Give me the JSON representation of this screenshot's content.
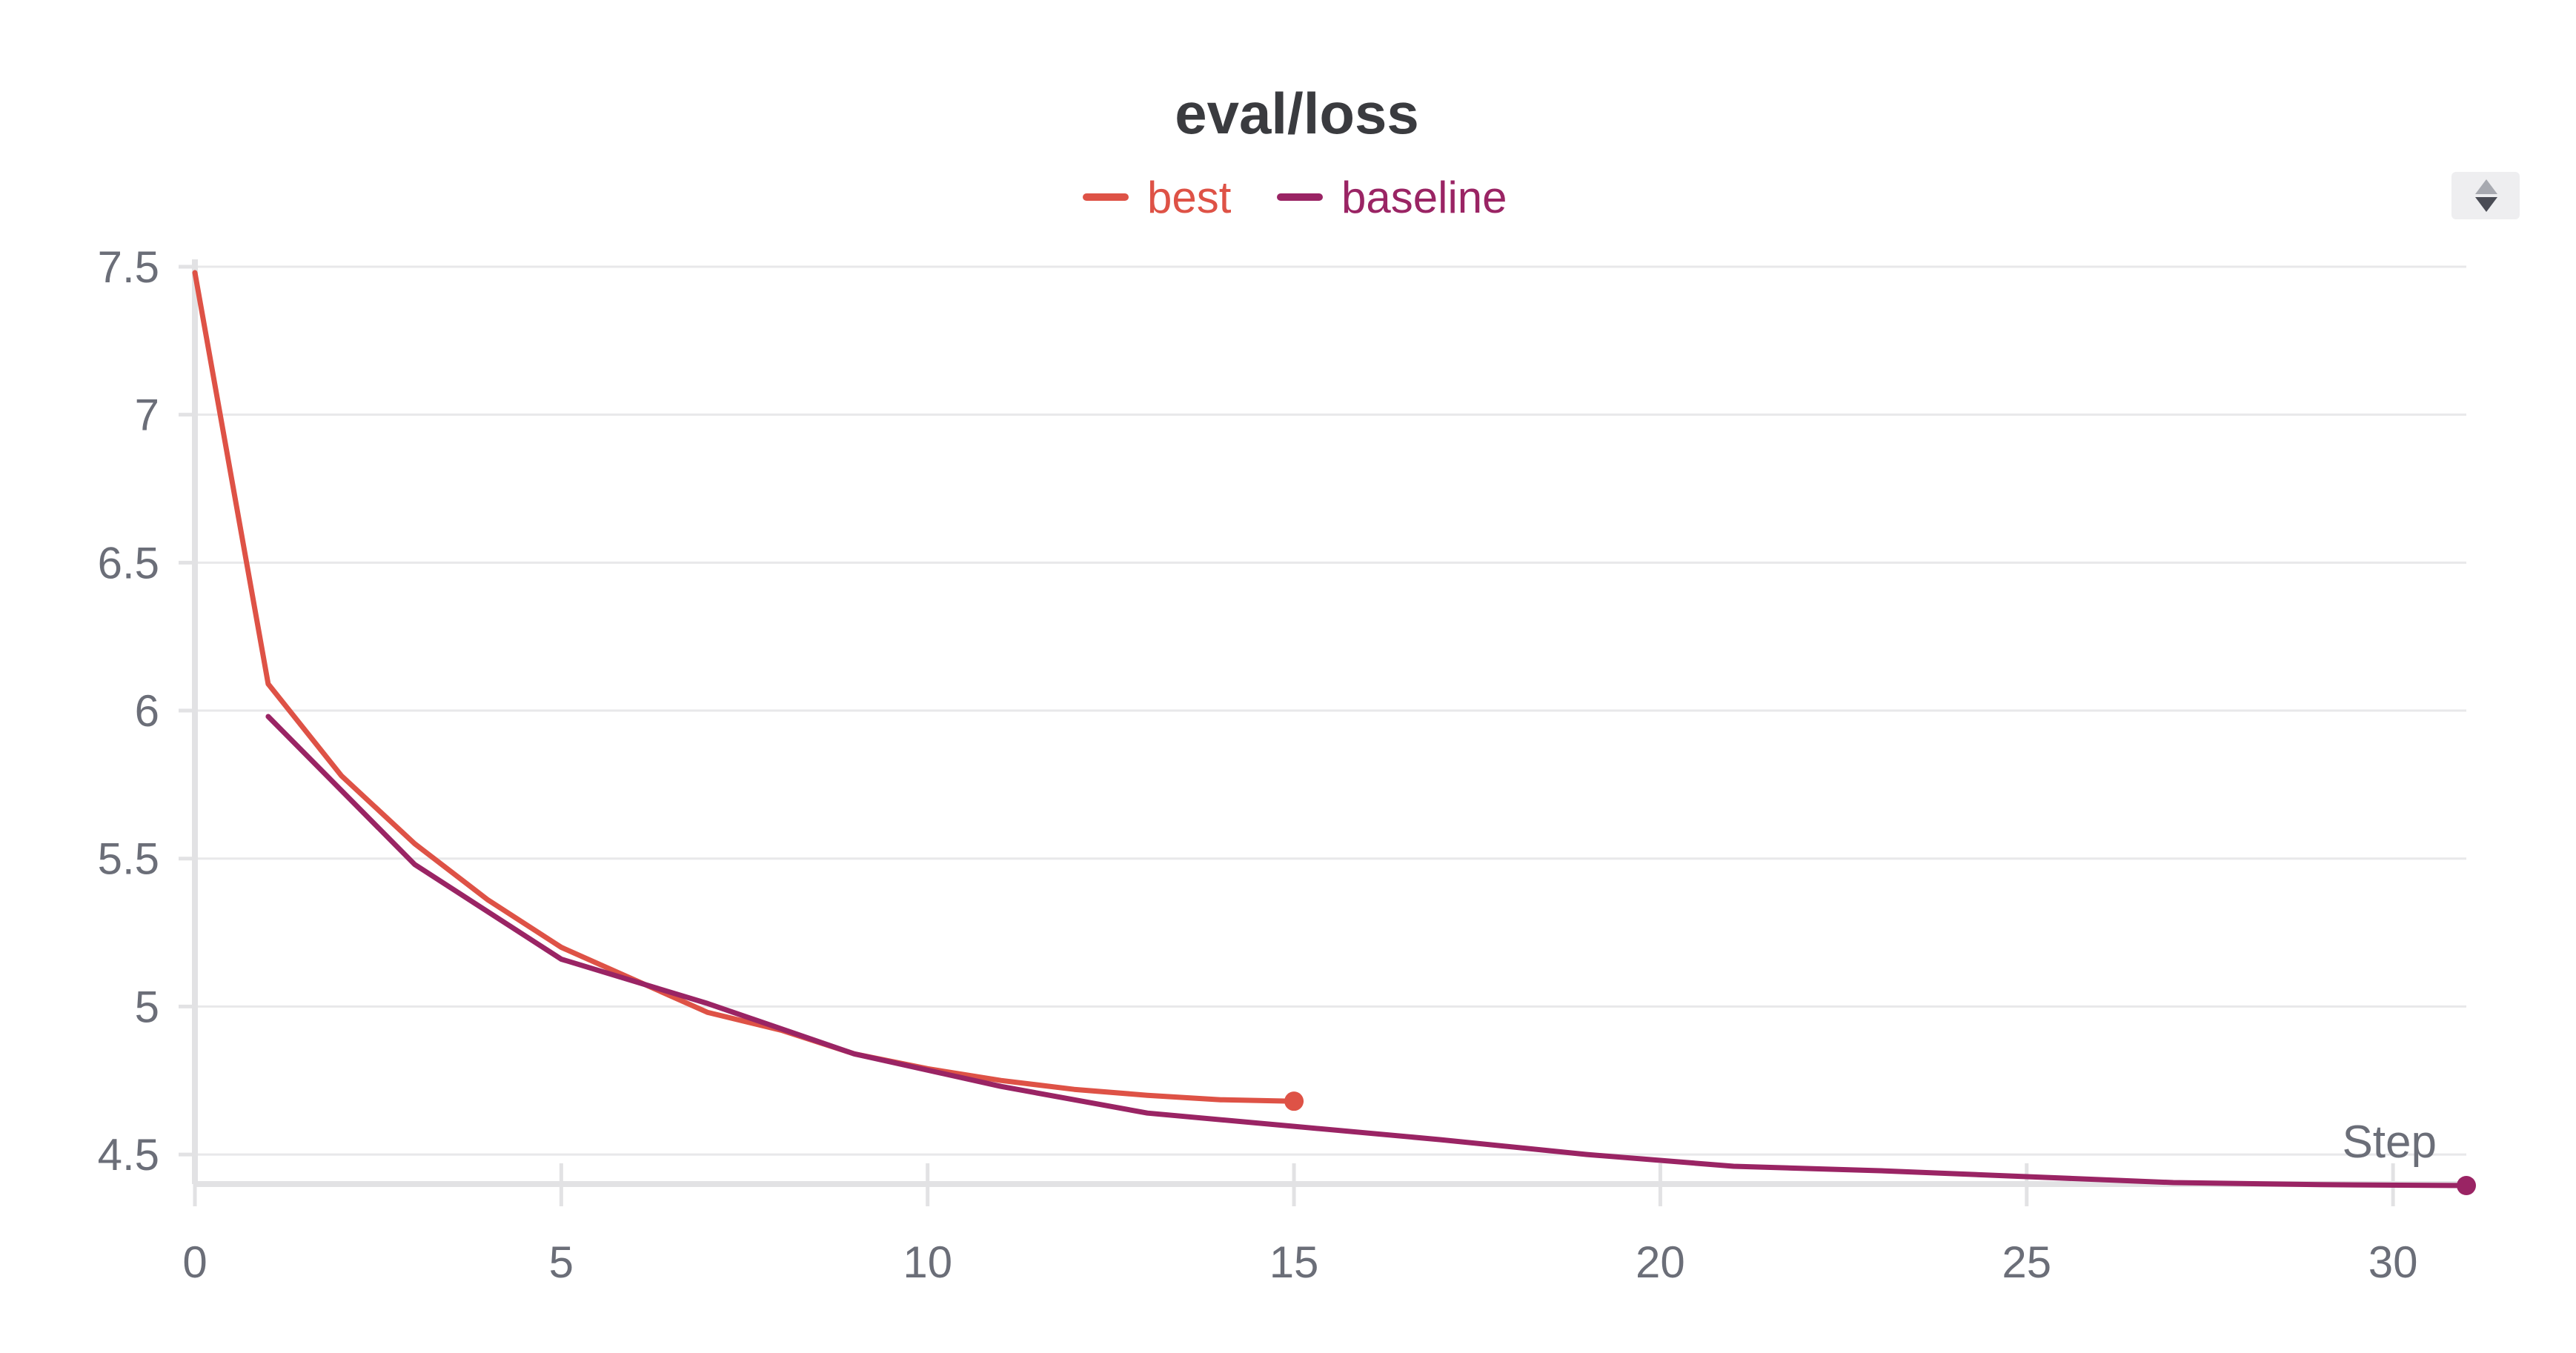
{
  "chart_data": {
    "type": "line",
    "title": "eval/loss",
    "xlabel": "Step",
    "ylabel": "",
    "xlim": [
      0,
      31
    ],
    "ylim": [
      4.4,
      7.5
    ],
    "xticks": [
      0,
      5,
      10,
      15,
      20,
      25,
      30
    ],
    "yticks": [
      4.5,
      5,
      5.5,
      6,
      6.5,
      7,
      7.5
    ],
    "ytick_labels": [
      "4.5",
      "5",
      "5.5",
      "6",
      "6.5",
      "7",
      "7.5"
    ],
    "grid": true,
    "legend_position": "top-center",
    "series": [
      {
        "name": "best",
        "color": "#de5246",
        "x": [
          0,
          1,
          2,
          3,
          4,
          5,
          6,
          7,
          8,
          9,
          10,
          11,
          12,
          13,
          14,
          15
        ],
        "y": [
          7.48,
          6.09,
          5.78,
          5.55,
          5.36,
          5.2,
          5.09,
          4.98,
          4.92,
          4.84,
          4.79,
          4.75,
          4.72,
          4.7,
          4.685,
          4.68
        ]
      },
      {
        "name": "baseline",
        "color": "#9a2464",
        "x": [
          1,
          3,
          5,
          7,
          9,
          11,
          13,
          15,
          17,
          19,
          21,
          23,
          25,
          27,
          29,
          31
        ],
        "y": [
          5.98,
          5.48,
          5.16,
          5.01,
          4.84,
          4.73,
          4.64,
          4.595,
          4.55,
          4.5,
          4.46,
          4.445,
          4.425,
          4.405,
          4.398,
          4.395
        ]
      }
    ]
  },
  "controls": {
    "sort_icon": "sort-arrows-icon"
  }
}
